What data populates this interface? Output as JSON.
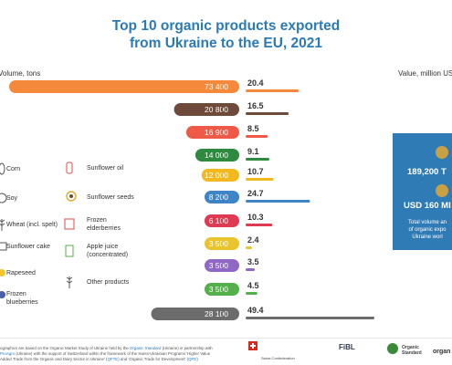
{
  "chart_data": {
    "type": "bar",
    "title_line1": "Top 10 organic products exported",
    "title_line2": "from Ukraine to the EU, 2021",
    "left_axis_label": "Volume, tons",
    "right_axis_label": "Value, million USD",
    "categories": [
      "Corn",
      "Soy",
      "Wheat (incl. spelt)",
      "Sunflower cake",
      "Rapeseed",
      "Sunflower oil",
      "Sunflower seeds",
      "Frozen elderberries",
      "Apple juice (concentrated)",
      "Other products",
      "Frozen blueberries"
    ],
    "rows": [
      {
        "volume": 73400,
        "volume_label": "73 400",
        "value": 20.4,
        "value_label": "20.4",
        "color": "#f4893b"
      },
      {
        "volume": 20800,
        "volume_label": "20 800",
        "value": 16.5,
        "value_label": "16.5",
        "color": "#6e4a3a"
      },
      {
        "volume": 16900,
        "volume_label": "16 900",
        "value": 8.5,
        "value_label": "8.5",
        "color": "#ef5a48"
      },
      {
        "volume": 14000,
        "volume_label": "14 000",
        "value": 9.1,
        "value_label": "9.1",
        "color": "#2e8a3e"
      },
      {
        "volume": 12000,
        "volume_label": "12 000",
        "value": 10.7,
        "value_label": "10.7",
        "color": "#f2b91e"
      },
      {
        "volume": 8200,
        "volume_label": "8 200",
        "value": 24.7,
        "value_label": "24.7",
        "color": "#3f84c6"
      },
      {
        "volume": 6100,
        "volume_label": "6 100",
        "value": 10.3,
        "value_label": "10.3",
        "color": "#df3a52"
      },
      {
        "volume": 3500,
        "volume_label": "3 500",
        "value": 2.4,
        "value_label": "2.4",
        "color": "#e9c42d"
      },
      {
        "volume": 3500,
        "volume_label": "3 500",
        "value": 3.5,
        "value_label": "3.5",
        "color": "#8f68c6"
      },
      {
        "volume": 3500,
        "volume_label": "3 500",
        "value": 4.5,
        "value_label": "4.5",
        "color": "#54b04a"
      },
      {
        "volume": 28100,
        "volume_label": "28 100",
        "value": 49.4,
        "value_label": "49.4",
        "color": "#6c6c6c"
      }
    ],
    "xlim_volume": [
      0,
      73400
    ],
    "xlim_value": [
      0,
      49.4
    ]
  },
  "legend_left": {
    "corn": "Corn",
    "soy": "Soy",
    "wheat": "Wheat (incl. spelt)",
    "sunflower_cake": "Sunflower cake",
    "rapeseed": "Rapeseed",
    "frozen_blueberries_1": "Frozen",
    "frozen_blueberries_2": "blueberries"
  },
  "legend_right": {
    "sunflower_oil": "Sunflower oil",
    "sunflower_seeds": "Sunflower seeds",
    "elderberries_1": "Frozen",
    "elderberries_2": "elderberries",
    "apple_juice_1": "Apple juice",
    "apple_juice_2": "(concentrated)",
    "other": "Other products"
  },
  "side_panel": {
    "tons": "189,200 T",
    "usd": "USD 160 MI",
    "note_1": "Total volume an",
    "note_2": "of organic expo",
    "note_3": "Ukraine worl"
  },
  "footer": {
    "line1a": "ographics are based on the Organic Market Study of Ukraine held by the ",
    "line1b": "Organic Standard",
    "line1c": " (Ukraine) in partnership with",
    "line2a": "ProAgro",
    "line2b": " (Ukraine) with the support of Switzerland within the framework of the Swiss-Ukrainian Programs 'Higher Value",
    "line3a": "Added Trade from the Organic and Dairy Sector in Ukraine' (",
    "line3b": "QFTE",
    "line3c": ") and 'Organic Trade for Development' (",
    "line3d": "QFD",
    "line3e": ")"
  },
  "logos": {
    "swiss": "Swiss Confederation",
    "fibl": "FiBL",
    "organic_standard_1": "Organic",
    "organic_standard_2": "Standard",
    "organic_cut": "organ"
  },
  "colors": {
    "title": "#2a7ab8",
    "panel": "#2f7bb6"
  }
}
